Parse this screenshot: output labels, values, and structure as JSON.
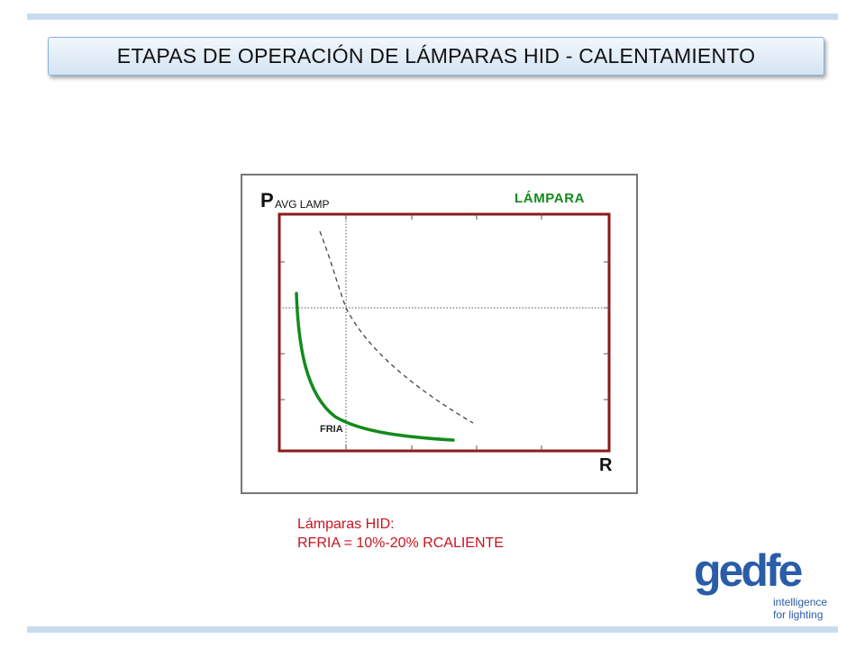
{
  "slide": {
    "title": "ETAPAS DE OPERACIÓN DE LÁMPARAS HID - CALENTAMIENTO"
  },
  "diagram": {
    "y_axis_label_main": "P",
    "y_axis_label_sub": "AVG LAMP",
    "x_axis_label": "R",
    "panel_label": "LÁMPARA",
    "curve_label": "FRIA",
    "colors": {
      "frame": "#8b1a1a",
      "curve": "#138a1c",
      "panel_label": "#138a1c",
      "reference": "#444444"
    }
  },
  "caption": {
    "line1": "Lámparas HID:",
    "line2": "RFRIA = 10%-20% RCALIENTE"
  },
  "logo": {
    "wordmark": "gedfe",
    "tagline_line1": "intelligence",
    "tagline_line2": "for lighting",
    "color": "#2a5ca8"
  }
}
